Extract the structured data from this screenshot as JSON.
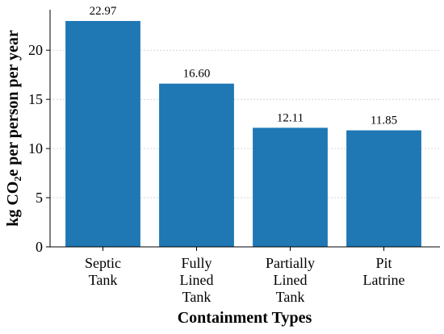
{
  "chart_data": {
    "type": "bar",
    "x_label": "Containment Types",
    "y_label": "kg CO₂e per person per year",
    "categories": [
      "Septic\nTank",
      "Fully\nLined\nTank",
      "Partially\nLined\nTank",
      "Pit\nLatrine"
    ],
    "values": [
      22.97,
      16.6,
      12.11,
      11.85
    ],
    "value_labels": [
      "22.97",
      "16.60",
      "12.11",
      "11.85"
    ],
    "color": "#1f77b4",
    "ylim": [
      0,
      24.12
    ],
    "yticks": [
      0,
      5,
      10,
      15,
      20
    ],
    "grid": true
  }
}
